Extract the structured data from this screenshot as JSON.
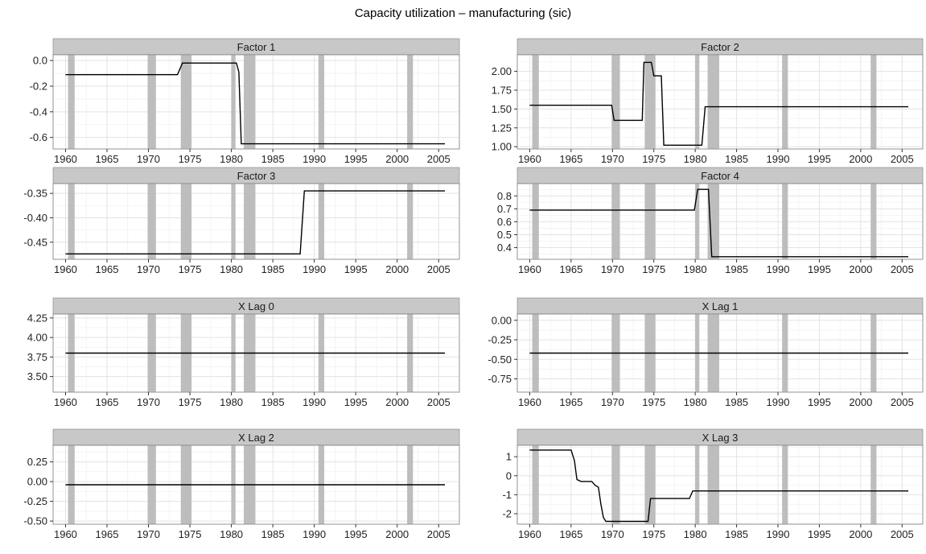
{
  "chart_data": {
    "type": "line",
    "title": "Capacity utilization – manufacturing (sic)",
    "recessions": [
      [
        1960.3,
        1961.1
      ],
      [
        1969.9,
        1970.9
      ],
      [
        1973.9,
        1975.2
      ],
      [
        1980.0,
        1980.5
      ],
      [
        1981.5,
        1982.9
      ],
      [
        1990.5,
        1991.2
      ],
      [
        2001.2,
        2001.9
      ]
    ],
    "x_range": [
      1958.5,
      2007.5
    ],
    "x_ticks": [
      1960,
      1965,
      1970,
      1975,
      1980,
      1985,
      1990,
      1995,
      2000,
      2005
    ],
    "panels": [
      {
        "name": "Factor 1",
        "ylim": [
          -0.69,
          0.045
        ],
        "y_ticks": [
          0.0,
          -0.2,
          -0.4,
          -0.6
        ],
        "y_tick_labels": [
          "0.0",
          "-0.2",
          "-0.4",
          "-0.6"
        ],
        "x": [
          1960.0,
          1973.5,
          1974.1,
          1980.6,
          1980.9,
          1981.2,
          2005.75
        ],
        "y": [
          -0.11,
          -0.11,
          -0.02,
          -0.02,
          -0.09,
          -0.65,
          -0.65
        ]
      },
      {
        "name": "Factor 2",
        "ylim": [
          0.97,
          2.22
        ],
        "y_ticks": [
          2.0,
          1.75,
          1.5,
          1.25,
          1.0
        ],
        "y_tick_labels": [
          "2.00",
          "1.75",
          "1.50",
          "1.25",
          "1.00"
        ],
        "x": [
          1960.0,
          1969.9,
          1970.2,
          1973.6,
          1973.8,
          1974.7,
          1975.0,
          1975.9,
          1976.2,
          1980.8,
          1981.2,
          2005.75
        ],
        "y": [
          1.55,
          1.55,
          1.35,
          1.35,
          2.12,
          2.12,
          1.94,
          1.94,
          1.02,
          1.02,
          1.53,
          1.53
        ]
      },
      {
        "name": "Factor 3",
        "ylim": [
          -0.485,
          -0.33
        ],
        "y_ticks": [
          -0.35,
          -0.4,
          -0.45
        ],
        "y_tick_labels": [
          "-0.35",
          "-0.40",
          "-0.45"
        ],
        "x": [
          1960.0,
          1988.3,
          1988.8,
          2005.75
        ],
        "y": [
          -0.474,
          -0.474,
          -0.345,
          -0.345
        ]
      },
      {
        "name": "Factor 4",
        "ylim": [
          0.31,
          0.895
        ],
        "y_ticks": [
          0.8,
          0.7,
          0.6,
          0.5,
          0.4
        ],
        "y_tick_labels": [
          "0.8",
          "0.7",
          "0.6",
          "0.5",
          "0.4"
        ],
        "x": [
          1960.0,
          1979.9,
          1980.3,
          1981.6,
          1982.0,
          2005.75
        ],
        "y": [
          0.69,
          0.69,
          0.85,
          0.85,
          0.33,
          0.33
        ]
      },
      {
        "name": "X Lag 0",
        "ylim": [
          3.3,
          4.3
        ],
        "y_ticks": [
          4.25,
          4.0,
          3.75,
          3.5
        ],
        "y_tick_labels": [
          "4.25",
          "4.00",
          "3.75",
          "3.50"
        ],
        "x": [
          1960.0,
          2005.75
        ],
        "y": [
          3.8,
          3.8
        ]
      },
      {
        "name": "X Lag 1",
        "ylim": [
          -0.92,
          0.08
        ],
        "y_ticks": [
          0.0,
          -0.25,
          -0.5,
          -0.75
        ],
        "y_tick_labels": [
          "0.00",
          "-0.25",
          "-0.50",
          "-0.75"
        ],
        "x": [
          1960.0,
          2005.75
        ],
        "y": [
          -0.42,
          -0.42
        ]
      },
      {
        "name": "X Lag 2",
        "ylim": [
          -0.54,
          0.46
        ],
        "y_ticks": [
          0.25,
          0.0,
          -0.25,
          -0.5
        ],
        "y_tick_labels": [
          "0.25",
          "0.00",
          "-0.25",
          "-0.50"
        ],
        "x": [
          1960.0,
          2005.75
        ],
        "y": [
          -0.04,
          -0.04
        ]
      },
      {
        "name": "X Lag 3",
        "ylim": [
          -2.55,
          1.6
        ],
        "y_ticks": [
          1,
          0,
          -1,
          -2
        ],
        "y_tick_labels": [
          "1",
          "0",
          "-1",
          "-2"
        ],
        "x": [
          1960.0,
          1965.0,
          1965.4,
          1965.7,
          1966.2,
          1967.5,
          1967.9,
          1968.3,
          1968.6,
          1968.9,
          1969.2,
          1974.3,
          1974.6,
          1979.3,
          1979.7,
          2005.75
        ],
        "y": [
          1.35,
          1.35,
          0.8,
          -0.2,
          -0.3,
          -0.3,
          -0.5,
          -0.6,
          -1.5,
          -2.2,
          -2.4,
          -2.4,
          -1.2,
          -1.2,
          -0.8,
          -0.8
        ]
      }
    ]
  }
}
